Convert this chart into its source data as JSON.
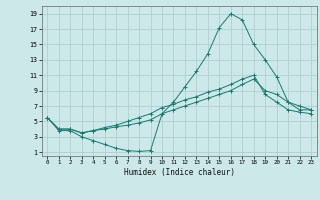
{
  "xlabel": "Humidex (Indice chaleur)",
  "background_color": "#cce8e8",
  "grid_color": "#aacccc",
  "line_color": "#1a7a6e",
  "xlim": [
    -0.5,
    23.5
  ],
  "ylim": [
    0.5,
    20
  ],
  "xticks": [
    0,
    1,
    2,
    3,
    4,
    5,
    6,
    7,
    8,
    9,
    10,
    11,
    12,
    13,
    14,
    15,
    16,
    17,
    18,
    19,
    20,
    21,
    22,
    23
  ],
  "yticks": [
    1,
    3,
    5,
    7,
    9,
    11,
    13,
    15,
    17,
    19
  ],
  "line1_x": [
    0,
    1,
    2,
    3,
    4,
    5,
    6,
    7,
    8,
    9,
    10,
    11,
    12,
    13,
    14,
    15,
    16,
    17,
    18,
    19,
    20,
    21,
    22,
    23
  ],
  "line1_y": [
    5.5,
    3.8,
    3.8,
    3.0,
    2.5,
    2.0,
    1.5,
    1.2,
    1.1,
    1.2,
    6.0,
    7.5,
    9.5,
    11.5,
    13.8,
    17.2,
    19.0,
    18.2,
    15.0,
    13.0,
    10.8,
    7.5,
    6.5,
    6.5
  ],
  "line2_x": [
    0,
    1,
    2,
    3,
    4,
    5,
    6,
    7,
    8,
    9,
    10,
    11,
    12,
    13,
    14,
    15,
    16,
    17,
    18,
    19,
    20,
    21,
    22,
    23
  ],
  "line2_y": [
    5.5,
    4.0,
    4.0,
    3.5,
    3.8,
    4.0,
    4.3,
    4.5,
    4.8,
    5.2,
    6.0,
    6.5,
    7.0,
    7.5,
    8.0,
    8.5,
    9.0,
    9.8,
    10.5,
    9.0,
    8.5,
    7.5,
    7.0,
    6.5
  ],
  "line3_x": [
    0,
    1,
    2,
    3,
    4,
    5,
    6,
    7,
    8,
    9,
    10,
    11,
    12,
    13,
    14,
    15,
    16,
    17,
    18,
    19,
    20,
    21,
    22,
    23
  ],
  "line3_y": [
    5.5,
    4.0,
    4.0,
    3.5,
    3.8,
    4.2,
    4.5,
    5.0,
    5.5,
    6.0,
    6.8,
    7.2,
    7.8,
    8.2,
    8.8,
    9.2,
    9.8,
    10.5,
    11.0,
    8.5,
    7.5,
    6.5,
    6.2,
    6.0
  ]
}
